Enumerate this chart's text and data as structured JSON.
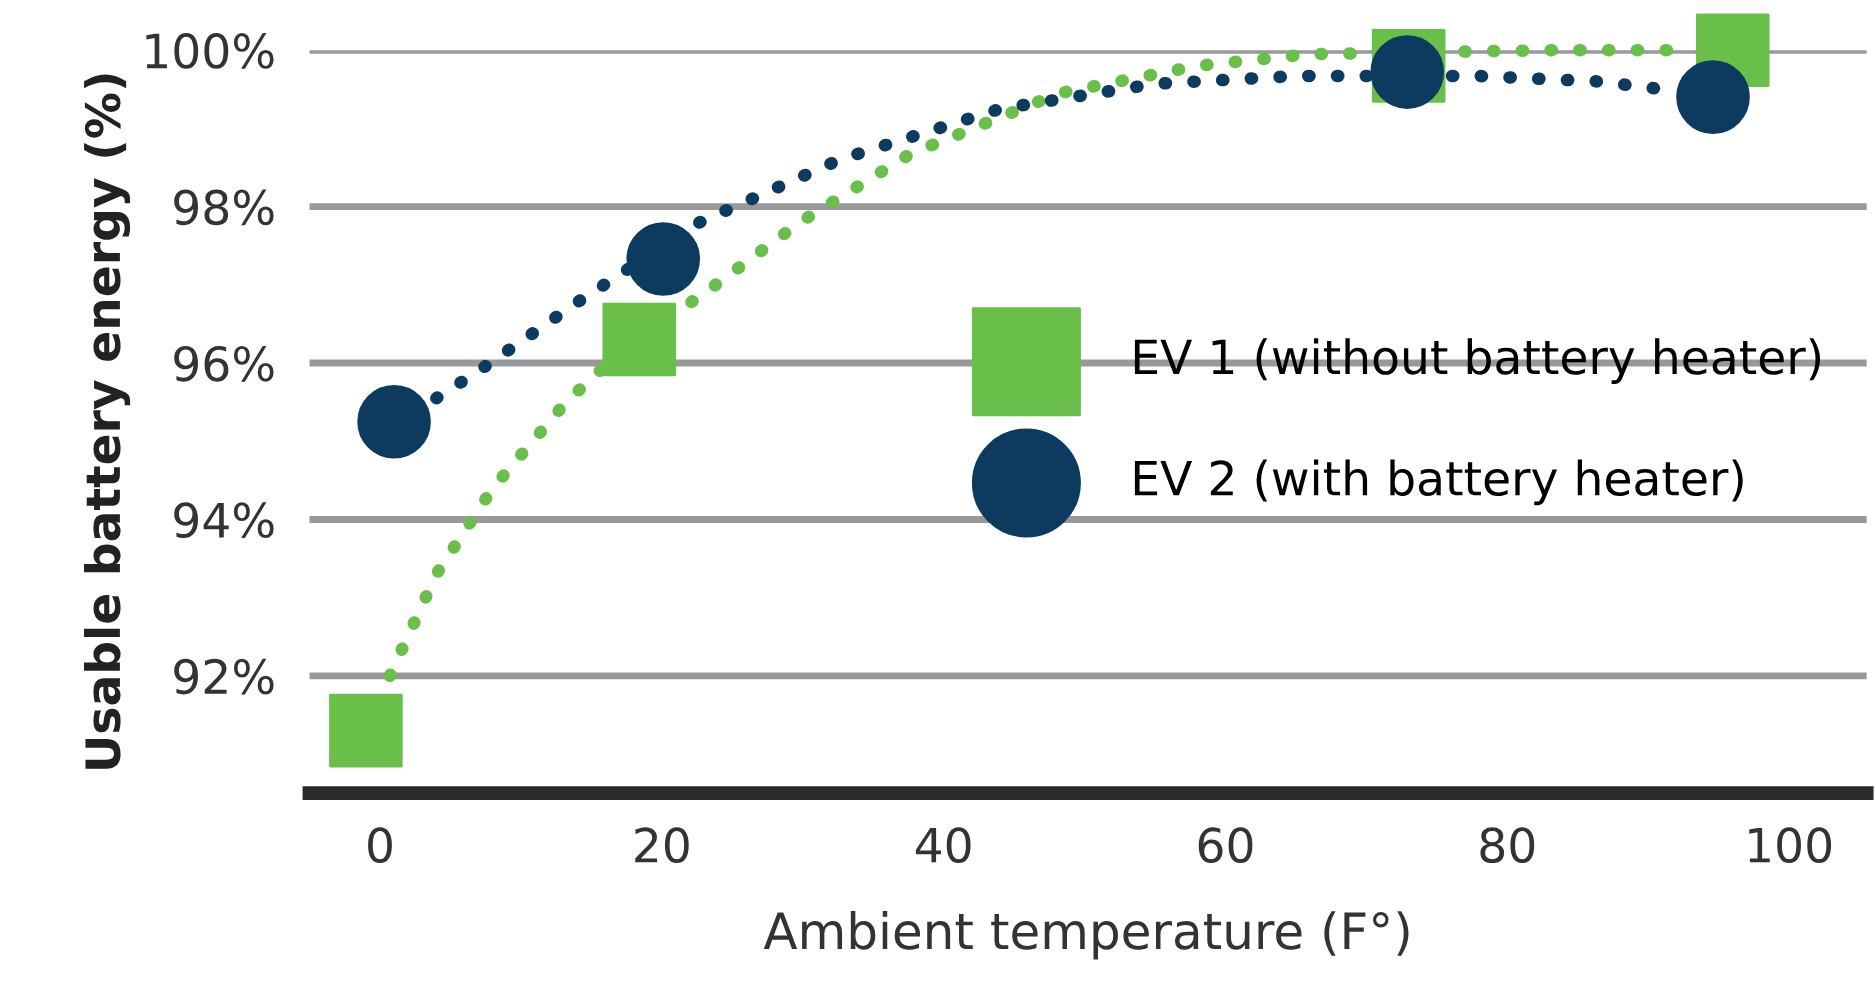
{
  "chart_data": {
    "type": "scatter",
    "xlabel": "Ambient temperature (F°)",
    "ylabel": "Usable battery energy (%)",
    "xlim": [
      -5,
      105.5
    ],
    "ylim": [
      90.5,
      100
    ],
    "xticks": [
      0,
      20,
      40,
      60,
      80,
      100
    ],
    "yticks": [
      {
        "value": 92,
        "label": "92%"
      },
      {
        "value": 94,
        "label": "94%"
      },
      {
        "value": 96,
        "label": "96%"
      },
      {
        "value": 98,
        "label": "98%"
      },
      {
        "value": 100,
        "label": "100%"
      }
    ],
    "grid": "y",
    "legend": "right",
    "series": [
      {
        "type": "line",
        "line_style": "dotted",
        "marker": "none",
        "color": "#6abf4b",
        "x": [
          0.7,
          4,
          8,
          13.2,
          18,
          22.7,
          29.8,
          37.6,
          48.2,
          58,
          66,
          83,
          91.5
        ],
        "values": [
          92.0,
          93.3,
          94.4,
          95.5,
          96.3,
          96.85,
          97.8,
          98.67,
          99.45,
          99.8,
          99.95,
          100,
          100
        ]
      },
      {
        "type": "line",
        "line_style": "dotted",
        "marker": "none",
        "color": "#0d3a5f",
        "x": [
          4,
          7,
          14.2,
          22.7,
          32.6,
          44,
          55,
          65,
          78,
          86.5,
          91
        ],
        "values": [
          95.55,
          95.9,
          96.8,
          97.8,
          98.6,
          99.25,
          99.57,
          99.67,
          99.67,
          99.6,
          99.5
        ]
      },
      {
        "name": "EV 1 (without battery heater)",
        "marker": "square",
        "color": "#6abf4b",
        "x": [
          -1,
          18.4,
          73,
          96
        ],
        "values": [
          91.3,
          96.3,
          99.8,
          100
        ]
      },
      {
        "name": "EV 2 (with battery heater)",
        "marker": "circle",
        "color": "#0d3a5f",
        "x": [
          1,
          20.1,
          72.9,
          94.6
        ],
        "values": [
          95.25,
          97.33,
          99.72,
          99.4
        ]
      }
    ]
  }
}
